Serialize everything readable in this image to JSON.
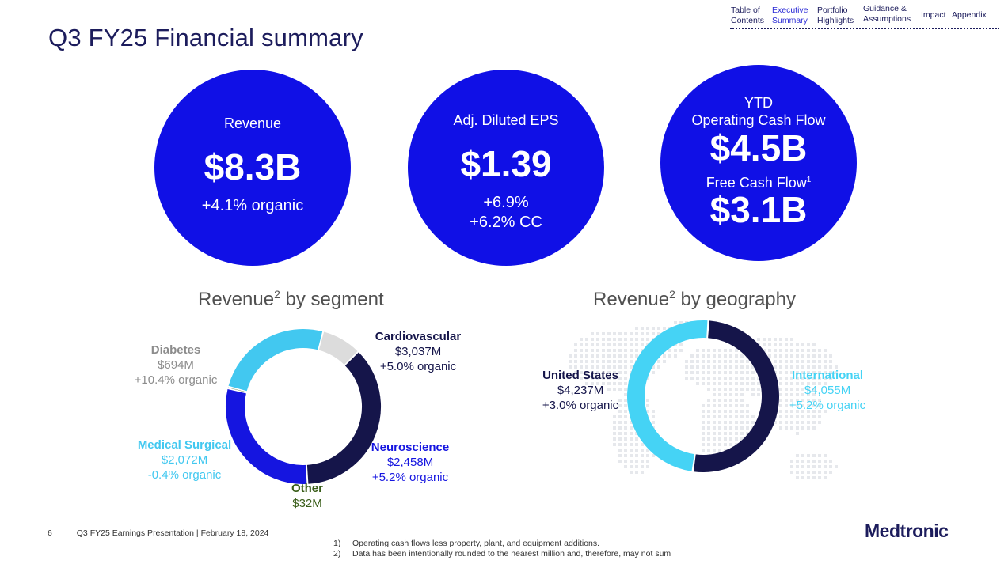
{
  "title": "Q3 FY25 Financial summary",
  "nav": [
    {
      "label_line1": "Table of",
      "label_line2": "Contents",
      "active": false
    },
    {
      "label_line1": "Executive",
      "label_line2": "Summary",
      "active": true
    },
    {
      "label_line1": "Portfolio",
      "label_line2": "Highlights",
      "active": false
    },
    {
      "label_line1": "Guidance &",
      "label_line2": "Assumptions",
      "active": false
    },
    {
      "label_line1": "Impact",
      "label_line2": "",
      "active": false
    },
    {
      "label_line1": "Appendix",
      "label_line2": "",
      "active": false
    }
  ],
  "circles": {
    "revenue": {
      "label": "Revenue",
      "value": "$8.3B",
      "sub": "+4.1% organic"
    },
    "eps": {
      "label": "Adj. Diluted EPS",
      "value": "$1.39",
      "sub1": "+6.9%",
      "sub2": "+6.2% CC"
    },
    "cash": {
      "label1": "YTD",
      "label2": "Operating Cash Flow",
      "value1": "$4.5B",
      "label3": "Free Cash Flow",
      "label3_sup": "1",
      "value2": "$3.1B"
    }
  },
  "segment": {
    "title": "Revenue",
    "title_sup": "2",
    "title_rest": " by segment",
    "items": [
      {
        "name": "Cardiovascular",
        "value": "$3,037M",
        "growth": "+5.0% organic",
        "color": "#15154a"
      },
      {
        "name": "Neuroscience",
        "value": "$2,458M",
        "growth": "+5.2% organic",
        "color": "#1515e0"
      },
      {
        "name": "Other",
        "value": "$32M",
        "growth": "",
        "color": "#3a5e1a"
      },
      {
        "name": "Medical Surgical",
        "value": "$2,072M",
        "growth": "-0.4% organic",
        "color": "#42c8f0"
      },
      {
        "name": "Diabetes",
        "value": "$694M",
        "growth": "+10.4% organic",
        "color": "#dcdcdc"
      }
    ]
  },
  "geography": {
    "title": "Revenue",
    "title_sup": "2",
    "title_rest": " by geography",
    "items": [
      {
        "name": "United States",
        "value": "$4,237M",
        "growth": "+3.0% organic",
        "color": "#15154a"
      },
      {
        "name": "International",
        "value": "$4,055M",
        "growth": "+5.2% organic",
        "color": "#45d3f5"
      }
    ]
  },
  "footer": {
    "page": "6",
    "deck": "Q3 FY25 Earnings Presentation  |  February 18, 2024",
    "footnotes": [
      {
        "n": "1)",
        "text": "Operating cash flows less property, plant, and equipment additions."
      },
      {
        "n": "2)",
        "text": "Data has been intentionally rounded to the nearest million and, therefore, may not sum"
      }
    ],
    "logo": "Medtronic"
  }
}
